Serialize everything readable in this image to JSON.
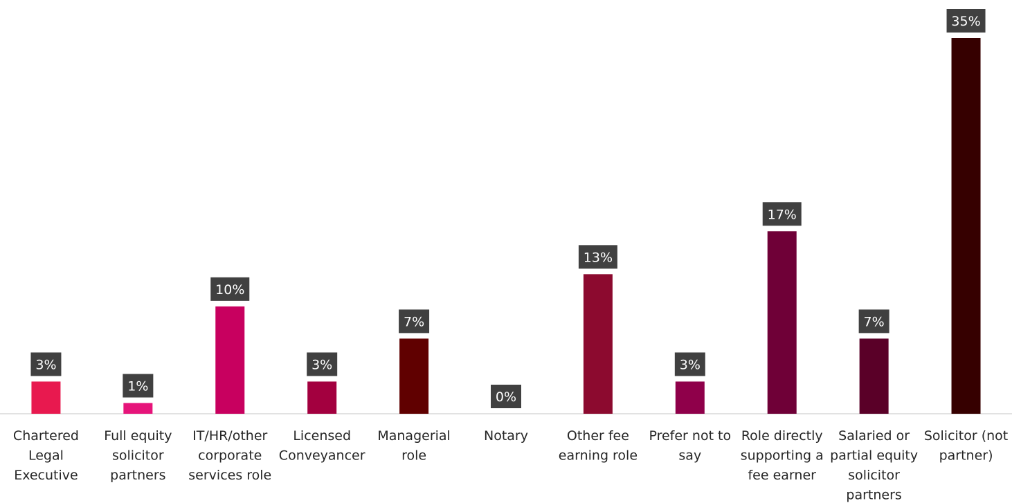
{
  "chart_data": {
    "type": "bar",
    "categories": [
      "Chartered Legal Executive",
      "Full equity solicitor partners",
      "IT/HR/other corporate services role",
      "Licensed Conveyancer",
      "Managerial role",
      "Notary",
      "Other fee earning role",
      "Prefer not to say",
      "Role directly supporting a fee earner",
      "Salaried or partial equity solicitor partners",
      "Solicitor (not partner)"
    ],
    "category_lines": [
      [
        "Chartered",
        "Legal",
        "Executive"
      ],
      [
        "Full equity",
        "solicitor",
        "partners"
      ],
      [
        "IT/HR/other",
        "corporate",
        "services role"
      ],
      [
        "Licensed",
        "Conveyancer"
      ],
      [
        "Managerial",
        "role"
      ],
      [
        "Notary"
      ],
      [
        "Other fee",
        "earning role"
      ],
      [
        "Prefer not to",
        "say"
      ],
      [
        "Role directly",
        "supporting a",
        "fee earner"
      ],
      [
        "Salaried or",
        "partial equity",
        "solicitor",
        "partners"
      ],
      [
        "Solicitor (not",
        "partner)"
      ]
    ],
    "values": [
      3,
      1,
      10,
      3,
      7,
      0,
      13,
      3,
      17,
      7,
      35
    ],
    "data_labels": [
      "3%",
      "1%",
      "10%",
      "3%",
      "7%",
      "0%",
      "13%",
      "3%",
      "17%",
      "7%",
      "35%"
    ],
    "bar_colors": [
      "#e8194f",
      "#e6147a",
      "#c8005f",
      "#a3003f",
      "#600000",
      "#600000",
      "#8c0a2f",
      "#8f004a",
      "#6f0037",
      "#5a0028",
      "#360000"
    ],
    "label_box_color": "#404040",
    "axis_color": "#d9d9d9",
    "ylim": [
      0,
      35
    ],
    "value_suffix": "%",
    "grid": false,
    "legend": "none",
    "title": "",
    "xlabel": "",
    "ylabel": ""
  }
}
